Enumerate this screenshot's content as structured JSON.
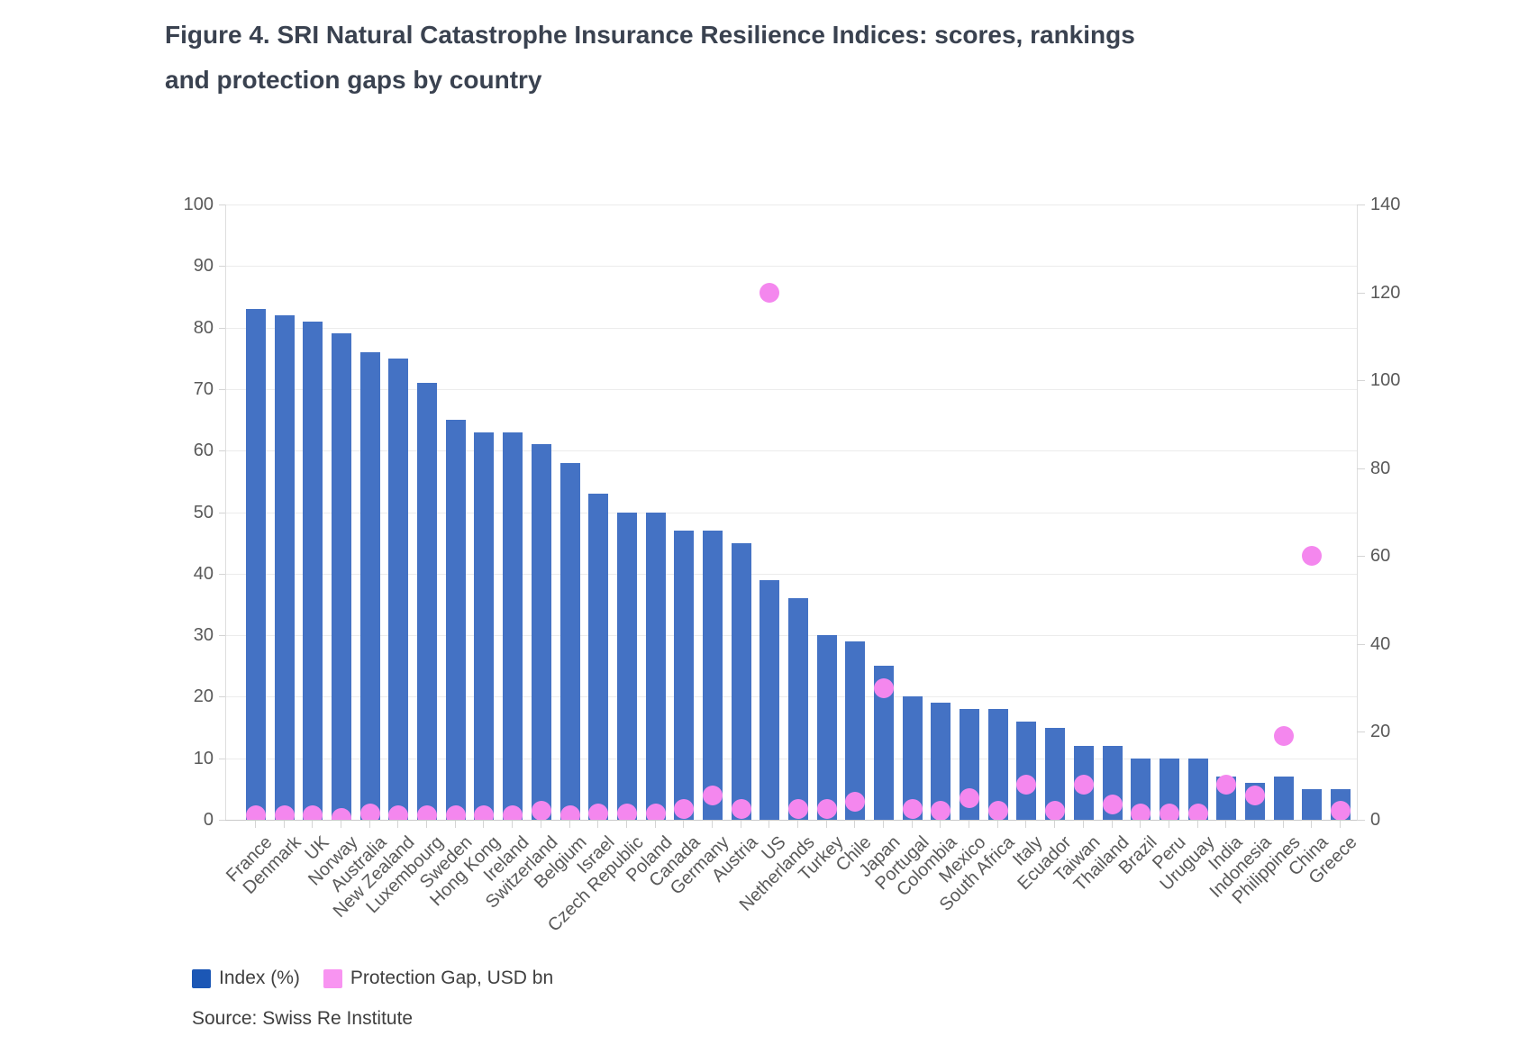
{
  "title": {
    "line1": "Figure 4. SRI Natural Catastrophe Insurance Resilience Indices: scores, rankings",
    "line2": "and protection gaps by country"
  },
  "source": "Source: Swiss Re Institute",
  "legend": {
    "items": [
      {
        "label": "Index (%)",
        "color": "#1c57b5"
      },
      {
        "label": "Protection Gap, USD bn",
        "color": "#f894f1"
      }
    ]
  },
  "colors": {
    "bar": "#4472c4",
    "dot": "#f487ee",
    "gridline": "#ececec",
    "axis_text": "#595959",
    "title_text": "#3a4250"
  },
  "axes": {
    "left": {
      "ticks": [
        0,
        10,
        20,
        30,
        40,
        50,
        60,
        70,
        80,
        90,
        100
      ],
      "max": 100
    },
    "right": {
      "ticks": [
        0,
        20,
        40,
        60,
        80,
        100,
        120,
        140
      ],
      "max": 140
    }
  },
  "chart_data": {
    "type": "bar",
    "title": "Figure 4. SRI Natural Catastrophe Insurance Resilience Indices: scores, rankings and protection gaps by country",
    "categories": [
      "France",
      "Denmark",
      "UK",
      "Norway",
      "Australia",
      "New Zealand",
      "Luxembourg",
      "Sweden",
      "Hong Kong",
      "Ireland",
      "Switzerland",
      "Belgium",
      "Israel",
      "Czech Republic",
      "Poland",
      "Canada",
      "Germany",
      "Austria",
      "US",
      "Netherlands",
      "Turkey",
      "Chile",
      "Japan",
      "Portugal",
      "Colombia",
      "Mexico",
      "South Africa",
      "Italy",
      "Ecuador",
      "Taiwan",
      "Thailand",
      "Brazil",
      "Peru",
      "Uruguay",
      "India",
      "Indonesia",
      "Philippines",
      "China",
      "Greece"
    ],
    "series": [
      {
        "name": "Index (%)",
        "render": "bar",
        "axis": "left",
        "values": [
          83,
          82,
          81,
          79,
          76,
          75,
          71,
          65,
          63,
          63,
          61,
          58,
          53,
          50,
          50,
          47,
          47,
          45,
          39,
          36,
          30,
          29,
          25,
          20,
          19,
          18,
          18,
          16,
          15,
          12,
          12,
          10,
          10,
          10,
          7,
          6,
          7,
          5,
          5
        ]
      },
      {
        "name": "Protection Gap, USD bn",
        "render": "scatter",
        "axis": "right",
        "values": [
          1,
          1,
          1,
          0.5,
          1.5,
          1,
          1,
          1,
          1,
          1,
          2,
          1,
          1.5,
          1.5,
          1.5,
          2.5,
          5.5,
          2.5,
          120,
          2.5,
          2.5,
          4,
          30,
          2.5,
          2,
          5,
          2,
          8,
          2,
          8,
          3.5,
          1.5,
          1.5,
          1.5,
          8,
          5.5,
          19,
          60,
          2
        ]
      }
    ],
    "ylim_left": [
      0,
      100
    ],
    "ylim_right": [
      0,
      140
    ],
    "grid": true,
    "legend_position": "bottom"
  }
}
